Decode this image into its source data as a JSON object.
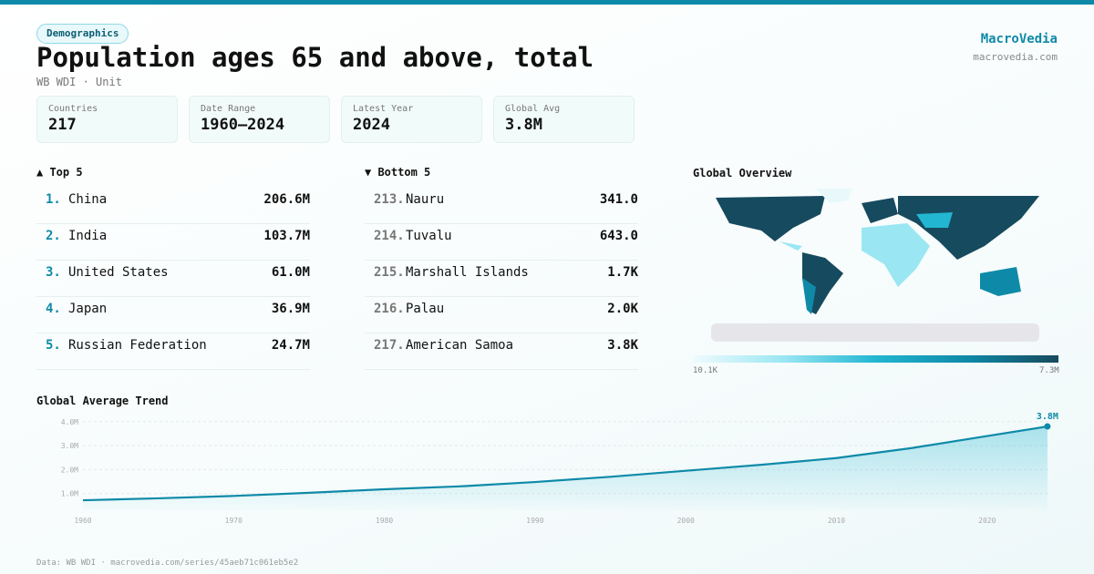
{
  "header": {
    "badge": "Demographics",
    "title": "Population ages 65 and above, total",
    "subtitle": "WB WDI · Unit",
    "brand": "MacroVedia",
    "brand_url": "macrovedia.com"
  },
  "stats": [
    {
      "label": "Countries",
      "value": "217"
    },
    {
      "label": "Date Range",
      "value": "1960–2024"
    },
    {
      "label": "Latest Year",
      "value": "2024"
    },
    {
      "label": "Global Avg",
      "value": "3.8M"
    }
  ],
  "top5": {
    "title": "▲ Top 5",
    "items": [
      {
        "rank": "1.",
        "name": "China",
        "value": "206.6M"
      },
      {
        "rank": "2.",
        "name": "India",
        "value": "103.7M"
      },
      {
        "rank": "3.",
        "name": "United States",
        "value": "61.0M"
      },
      {
        "rank": "4.",
        "name": "Japan",
        "value": "36.9M"
      },
      {
        "rank": "5.",
        "name": "Russian Federation",
        "value": "24.7M"
      }
    ]
  },
  "bottom5": {
    "title": "▼ Bottom 5",
    "items": [
      {
        "rank": "213.",
        "name": "Nauru",
        "value": "341.0"
      },
      {
        "rank": "214.",
        "name": "Tuvalu",
        "value": "643.0"
      },
      {
        "rank": "215.",
        "name": "Marshall Islands",
        "value": "1.7K"
      },
      {
        "rank": "216.",
        "name": "Palau",
        "value": "2.0K"
      },
      {
        "rank": "217.",
        "name": "American Samoa",
        "value": "3.8K"
      }
    ]
  },
  "map": {
    "title": "Global Overview",
    "scale_min": "10.1K",
    "scale_max": "7.3M",
    "colors": [
      "#effbfd",
      "#9ae6f3",
      "#22b6d2",
      "#0e8aa8",
      "#164a5e"
    ]
  },
  "chart_data": {
    "type": "area",
    "title": "Global Average Trend",
    "x": [
      1960,
      1965,
      1970,
      1975,
      1980,
      1985,
      1990,
      1995,
      2000,
      2005,
      2010,
      2015,
      2020,
      2024
    ],
    "y": [
      0.72,
      0.8,
      0.9,
      1.03,
      1.18,
      1.3,
      1.48,
      1.7,
      1.95,
      2.2,
      2.48,
      2.9,
      3.4,
      3.8
    ],
    "y_unit": "M",
    "yticks": [
      "1.0M",
      "2.0M",
      "3.0M",
      "4.0M"
    ],
    "xticks": [
      "1960",
      "1970",
      "1980",
      "1990",
      "2000",
      "2010",
      "2020"
    ],
    "last_label": "3.8M",
    "ylim": [
      0,
      4
    ],
    "grid": true,
    "color": "#0e8aa8"
  },
  "footer": "Data: WB WDI · macrovedia.com/series/45aeb71c061eb5e2"
}
